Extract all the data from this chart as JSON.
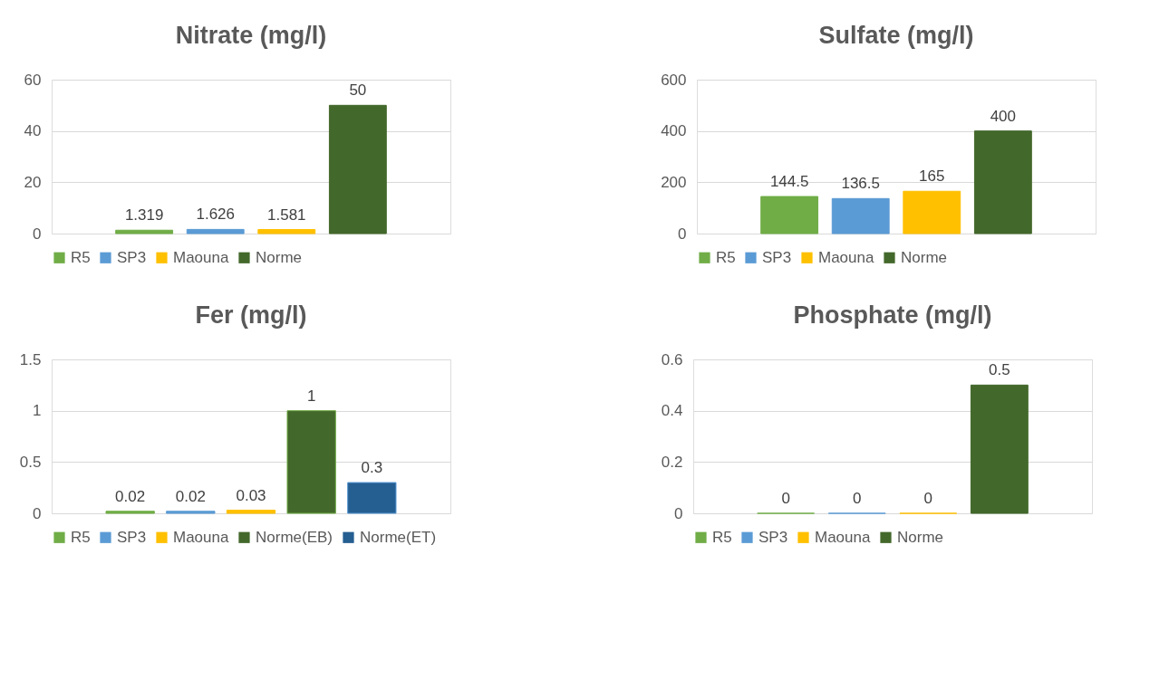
{
  "chart_data": [
    {
      "type": "bar",
      "title": "Nitrate (mg/l)",
      "categories": [
        null
      ],
      "series": [
        {
          "name": "R5",
          "color": "#70ad47",
          "values": [
            1.319
          ]
        },
        {
          "name": "SP3",
          "color": "#5b9bd5",
          "values": [
            1.626
          ]
        },
        {
          "name": "Maouna",
          "color": "#ffc000",
          "values": [
            1.581
          ]
        },
        {
          "name": "Norme",
          "color": "#43682b",
          "values": [
            50
          ]
        }
      ],
      "ylim": [
        0,
        60
      ],
      "yticks": [
        0,
        20,
        40,
        60
      ],
      "grid": "y",
      "legend": "bottom",
      "data_labels": true
    },
    {
      "type": "bar",
      "title": "Sulfate (mg/l)",
      "categories": [
        null
      ],
      "series": [
        {
          "name": "R5",
          "color": "#70ad47",
          "values": [
            144.5
          ]
        },
        {
          "name": "SP3",
          "color": "#5b9bd5",
          "values": [
            136.5
          ]
        },
        {
          "name": "Maouna",
          "color": "#ffc000",
          "values": [
            165
          ]
        },
        {
          "name": "Norme",
          "color": "#43682b",
          "values": [
            400
          ]
        }
      ],
      "ylim": [
        0,
        600
      ],
      "yticks": [
        0,
        200,
        400,
        600
      ],
      "grid": "y",
      "legend": "bottom",
      "data_labels": true
    },
    {
      "type": "bar",
      "title": "Fer (mg/l)",
      "categories": [
        null
      ],
      "series": [
        {
          "name": "R5",
          "color": "#70ad47",
          "values": [
            0.02
          ]
        },
        {
          "name": "SP3",
          "color": "#5b9bd5",
          "values": [
            0.02
          ]
        },
        {
          "name": "Maouna",
          "color": "#ffc000",
          "values": [
            0.03
          ]
        },
        {
          "name": "Norme(EB)",
          "color": "#43682b",
          "values": [
            1
          ]
        },
        {
          "name": "Norme(ET)",
          "color": "#255e91",
          "values": [
            0.3
          ]
        }
      ],
      "ylim": [
        0,
        1.5
      ],
      "yticks": [
        0,
        0.5,
        1,
        1.5
      ],
      "grid": "y",
      "legend": "bottom",
      "data_labels": true
    },
    {
      "type": "bar",
      "title": "Phosphate (mg/l)",
      "categories": [
        null
      ],
      "series": [
        {
          "name": "R5",
          "color": "#70ad47",
          "values": [
            0
          ]
        },
        {
          "name": "SP3",
          "color": "#5b9bd5",
          "values": [
            0
          ]
        },
        {
          "name": "Maouna",
          "color": "#ffc000",
          "values": [
            0
          ]
        },
        {
          "name": "Norme",
          "color": "#43682b",
          "values": [
            0.5
          ]
        }
      ],
      "ylim": [
        0,
        0.6
      ],
      "yticks": [
        0,
        0.2,
        0.4,
        0.6
      ],
      "grid": "y",
      "legend": "bottom",
      "data_labels": true
    }
  ]
}
